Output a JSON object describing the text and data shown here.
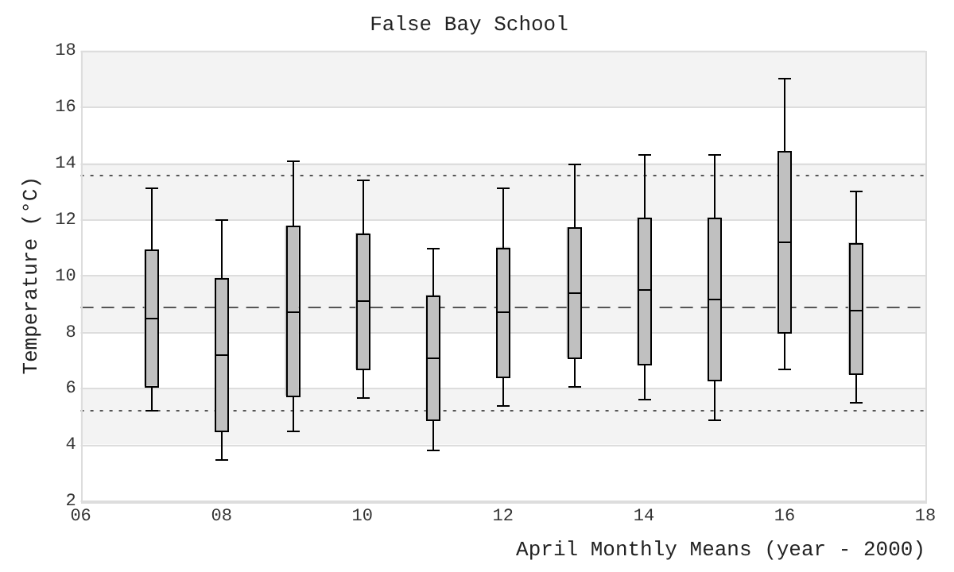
{
  "chart_data": {
    "type": "box",
    "title": "False Bay School",
    "xlabel": "April Monthly Means (year - 2000)",
    "ylabel": "Temperature (°C)",
    "x": [
      7,
      8,
      9,
      10,
      11,
      12,
      13,
      14,
      15,
      16,
      17
    ],
    "series": [
      {
        "color": "#c0c0c0",
        "boxes": [
          {
            "low": 5.2,
            "q1": 6.1,
            "median": 8.5,
            "q3": 10.9,
            "high": 13.1
          },
          {
            "low": 3.5,
            "q1": 4.5,
            "median": 7.2,
            "q3": 9.9,
            "high": 12.0
          },
          {
            "low": 4.5,
            "q1": 5.75,
            "median": 8.75,
            "q3": 11.75,
            "high": 14.1
          },
          {
            "low": 5.7,
            "q1": 6.7,
            "median": 9.1,
            "q3": 11.5,
            "high": 13.4
          },
          {
            "low": 3.8,
            "q1": 4.9,
            "median": 7.1,
            "q3": 9.3,
            "high": 11.0
          },
          {
            "low": 5.4,
            "q1": 6.4,
            "median": 8.7,
            "q3": 11.0,
            "high": 13.1
          },
          {
            "low": 6.1,
            "q1": 7.1,
            "median": 9.4,
            "q3": 11.7,
            "high": 14.0
          },
          {
            "low": 5.6,
            "q1": 6.85,
            "median": 9.5,
            "q3": 12.05,
            "high": 14.3
          },
          {
            "low": 4.9,
            "q1": 6.3,
            "median": 9.15,
            "q3": 12.05,
            "high": 14.3
          },
          {
            "low": 6.7,
            "q1": 8.0,
            "median": 11.2,
            "q3": 14.4,
            "high": 17.0
          },
          {
            "low": 5.5,
            "q1": 6.5,
            "median": 8.8,
            "q3": 11.15,
            "high": 13.0
          }
        ]
      }
    ],
    "xlim": [
      6,
      18
    ],
    "xticks": [
      {
        "value": 6,
        "label": "06"
      },
      {
        "value": 8,
        "label": "08"
      },
      {
        "value": 10,
        "label": "10"
      },
      {
        "value": 12,
        "label": "12"
      },
      {
        "value": 14,
        "label": "14"
      },
      {
        "value": 16,
        "label": "16"
      },
      {
        "value": 18,
        "label": "18"
      }
    ],
    "ylim": [
      2,
      18
    ],
    "yticks": [
      2,
      4,
      6,
      8,
      10,
      12,
      14,
      16,
      18
    ],
    "ref_lines": [
      {
        "axis": "y",
        "value": 8.9,
        "color": "#555555",
        "line_style": "dashed"
      },
      {
        "axis": "y",
        "value": 13.6,
        "color": "#555555",
        "line_style": "dotted"
      },
      {
        "axis": "y",
        "value": 5.2,
        "color": "#555555",
        "line_style": "dotted"
      }
    ],
    "grid": "y"
  }
}
